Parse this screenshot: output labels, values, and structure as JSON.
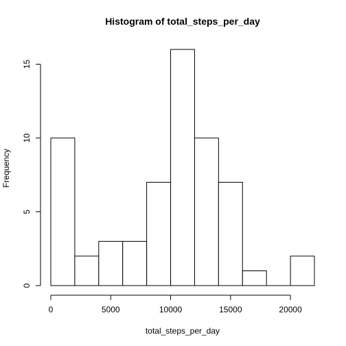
{
  "chart_data": {
    "type": "bar",
    "title": "Histogram of total_steps_per_day",
    "xlabel": "total_steps_per_day",
    "ylabel": "Frequency",
    "bins": [
      {
        "from": 0,
        "to": 2000,
        "count": 10
      },
      {
        "from": 2000,
        "to": 4000,
        "count": 2
      },
      {
        "from": 4000,
        "to": 6000,
        "count": 3
      },
      {
        "from": 6000,
        "to": 8000,
        "count": 3
      },
      {
        "from": 8000,
        "to": 10000,
        "count": 7
      },
      {
        "from": 10000,
        "to": 12000,
        "count": 16
      },
      {
        "from": 12000,
        "to": 14000,
        "count": 10
      },
      {
        "from": 14000,
        "to": 16000,
        "count": 7
      },
      {
        "from": 16000,
        "to": 18000,
        "count": 1
      },
      {
        "from": 18000,
        "to": 20000,
        "count": 0
      },
      {
        "from": 20000,
        "to": 22000,
        "count": 2
      }
    ],
    "xlim": [
      0,
      22000
    ],
    "ylim": [
      0,
      16
    ],
    "x_ticks": [
      0,
      5000,
      10000,
      15000,
      20000
    ],
    "y_ticks": [
      0,
      5,
      10,
      15
    ],
    "grid": false,
    "legend": "none",
    "bar_fill": "#ffffff",
    "bar_stroke": "#000000"
  }
}
